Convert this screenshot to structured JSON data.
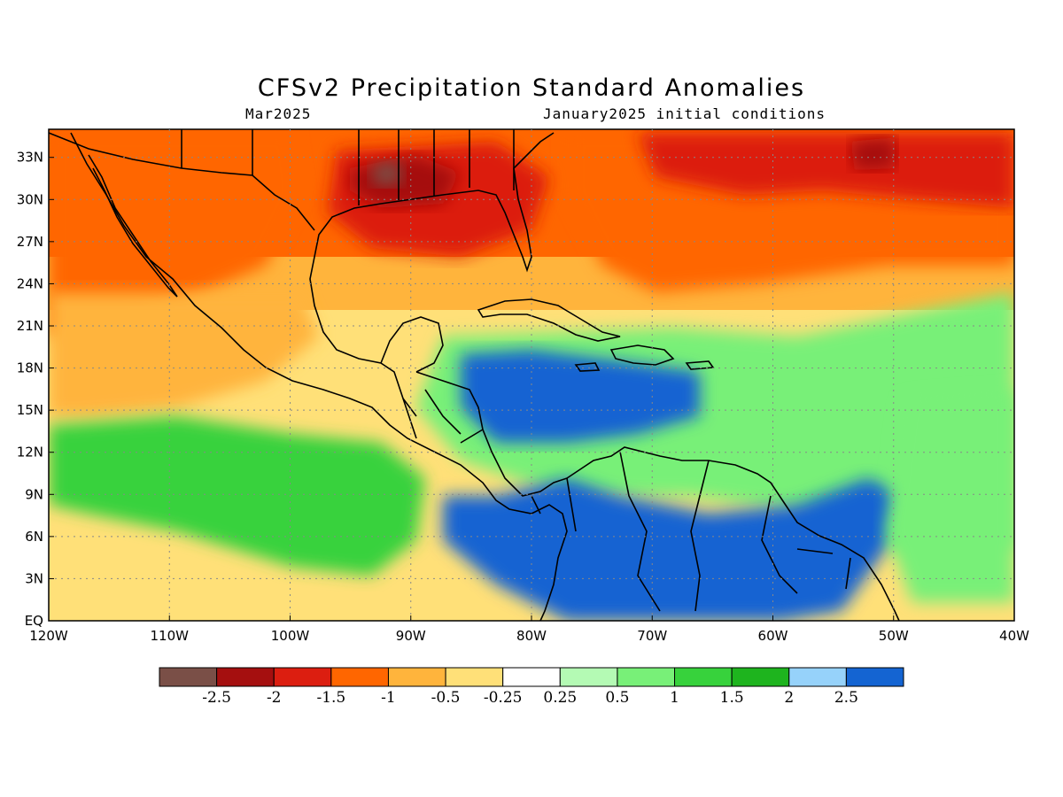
{
  "title": "CFSv2 Precipitation Standard Anomalies",
  "valid_month": "Mar2025",
  "initial_conditions": "January2025 initial conditions",
  "lat_axis": {
    "labels": [
      "EQ",
      "3N",
      "6N",
      "9N",
      "12N",
      "15N",
      "18N",
      "21N",
      "24N",
      "27N",
      "30N",
      "33N"
    ],
    "values": [
      0,
      3,
      6,
      9,
      12,
      15,
      18,
      21,
      24,
      27,
      30,
      33
    ]
  },
  "lon_axis": {
    "labels": [
      "120W",
      "110W",
      "100W",
      "90W",
      "80W",
      "70W",
      "60W",
      "50W",
      "40W"
    ],
    "values": [
      -120,
      -110,
      -100,
      -90,
      -80,
      -70,
      -60,
      -50,
      -40
    ]
  },
  "colorbar": {
    "colors": [
      "#7a4f47",
      "#a50f0f",
      "#dc1e10",
      "#ff6600",
      "#ffb43c",
      "#ffe078",
      "#ffffff",
      "#b4fab4",
      "#78f078",
      "#37d23c",
      "#1eb41e",
      "#96d2fa",
      "#1464d2"
    ],
    "labels": [
      "-2.5",
      "-2",
      "-1.5",
      "-1",
      "-0.5",
      "-0.25",
      "0.25",
      "0.5",
      "1",
      "1.5",
      "2",
      "2.5"
    ]
  },
  "regions": [
    {
      "name": "northwest-pacific",
      "color": "#ff6600"
    },
    {
      "name": "gulf-of-mexico",
      "color": "#dc1e10"
    },
    {
      "name": "gulf-coast-core",
      "color": "#a50f0f"
    },
    {
      "name": "louisiana-peak",
      "color": "#7a4f47"
    },
    {
      "name": "north-atlantic",
      "color": "#ff6600"
    },
    {
      "name": "central-atlantic-core",
      "color": "#dc1e10"
    },
    {
      "name": "atlantic-peak",
      "color": "#a50f0f"
    },
    {
      "name": "eastern-pacific",
      "color": "#ffb43c"
    },
    {
      "name": "caribbean",
      "color": "#78f078"
    },
    {
      "name": "central-caribbean",
      "color": "#1464d2"
    },
    {
      "name": "northern-south-america",
      "color": "#1464d2"
    },
    {
      "name": "equatorial-atlantic",
      "color": "#78f078"
    },
    {
      "name": "tropical-pacific",
      "color": "#37d23c"
    }
  ]
}
